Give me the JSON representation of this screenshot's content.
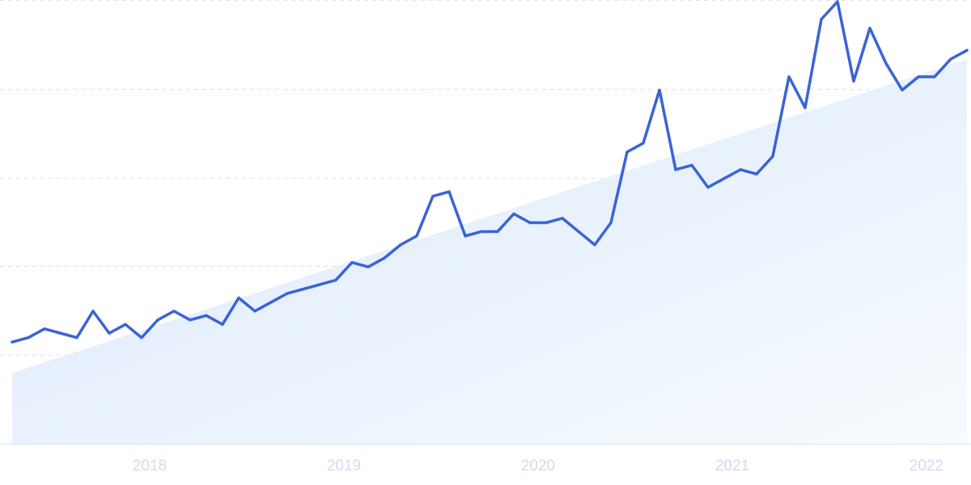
{
  "chart_data": {
    "type": "line",
    "title": "",
    "xlabel": "",
    "ylabel": "",
    "x_tick_labels": [
      "2018",
      "2019",
      "2020",
      "2021",
      "2022"
    ],
    "y_tick_labels": [],
    "grid": "horizontal dashed",
    "ylim": [
      0,
      100
    ],
    "series": [
      {
        "x": [
          "2017-09",
          "2017-10",
          "2017-11",
          "2017-12",
          "2018-01",
          "2018-02",
          "2018-03",
          "2018-04",
          "2018-05",
          "2018-06",
          "2018-07",
          "2018-08",
          "2018-09",
          "2018-10",
          "2018-11",
          "2018-12",
          "2019-01",
          "2019-02",
          "2019-03",
          "2019-04",
          "2019-05",
          "2019-06",
          "2019-07",
          "2019-08",
          "2019-09",
          "2019-10",
          "2019-11",
          "2019-12",
          "2020-01",
          "2020-02",
          "2020-03",
          "2020-04",
          "2020-05",
          "2020-06",
          "2020-07",
          "2020-08",
          "2020-09",
          "2020-10",
          "2020-11",
          "2020-12",
          "2021-01",
          "2021-02",
          "2021-03",
          "2021-04",
          "2021-05",
          "2021-06",
          "2021-07",
          "2021-08",
          "2021-09",
          "2021-10",
          "2021-11",
          "2021-12",
          "2022-01",
          "2022-02",
          "2022-03",
          "2022-04",
          "2022-05",
          "2022-06",
          "2022-07",
          "2022-08"
        ],
        "values": [
          23,
          24,
          26,
          25,
          24,
          30,
          25,
          27,
          24,
          28,
          30,
          28,
          29,
          27,
          33,
          30,
          32,
          34,
          35,
          36,
          37,
          41,
          40,
          42,
          45,
          47,
          56,
          57,
          47,
          48,
          48,
          52,
          50,
          50,
          51,
          48,
          45,
          50,
          66,
          68,
          80,
          62,
          63,
          58,
          60,
          62,
          61,
          65,
          83,
          76,
          96,
          100,
          82,
          94,
          86,
          80,
          83,
          83,
          87,
          89
        ]
      }
    ],
    "trend_fill": {
      "start_value": 16,
      "end_value": 87
    },
    "colors": {
      "line": "#3a63d8",
      "fill_start": "#dae8f9",
      "fill_end": "#f7fbff",
      "grid": "#dde2ea",
      "axis": "#cfe2f5",
      "tick_text": "#cfdcf2"
    }
  }
}
